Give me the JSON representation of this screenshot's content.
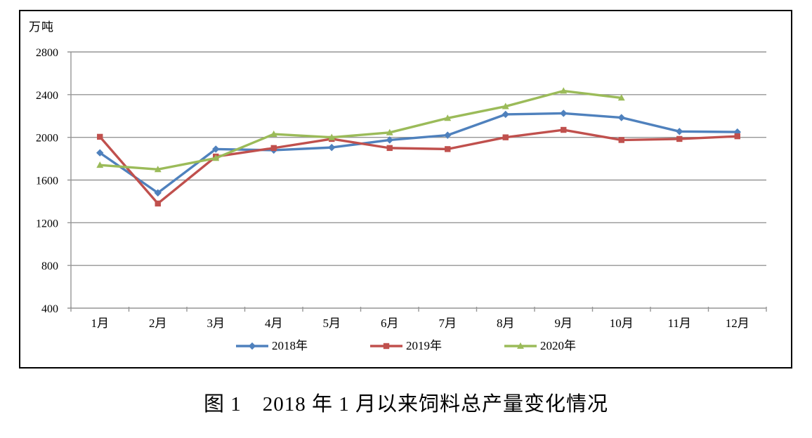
{
  "caption": "图 1　2018 年 1 月以来饲料总产量变化情况",
  "colors": {
    "gridline": "#969696",
    "axis": "#969696",
    "frame_border": "#000000",
    "background": "#FFFFFF",
    "series_2018": "#4F81BD",
    "series_2019": "#C0504D",
    "series_2020": "#9BBB59"
  },
  "chart_data": {
    "type": "line",
    "unit_label": "万吨",
    "categories": [
      "1月",
      "2月",
      "3月",
      "4月",
      "5月",
      "6月",
      "7月",
      "8月",
      "9月",
      "10月",
      "11月",
      "12月"
    ],
    "yticks": [
      400,
      800,
      1200,
      1600,
      2000,
      2400,
      2800
    ],
    "ylim": [
      400,
      2800
    ],
    "grid": true,
    "legend_position": "bottom",
    "series": [
      {
        "name": "2018年",
        "color": "#4F81BD",
        "marker": "diamond",
        "values": [
          1855,
          1480,
          1890,
          1880,
          1905,
          1975,
          2020,
          2215,
          2225,
          2185,
          2055,
          2050
        ]
      },
      {
        "name": "2019年",
        "color": "#C0504D",
        "marker": "square",
        "values": [
          2005,
          1380,
          1820,
          1900,
          1985,
          1900,
          1890,
          2000,
          2070,
          1975,
          1985,
          2010
        ]
      },
      {
        "name": "2020年",
        "color": "#9BBB59",
        "marker": "triangle",
        "values": [
          1740,
          1700,
          1805,
          2030,
          2000,
          2045,
          2180,
          2290,
          2435,
          2370,
          null,
          null
        ]
      }
    ]
  }
}
